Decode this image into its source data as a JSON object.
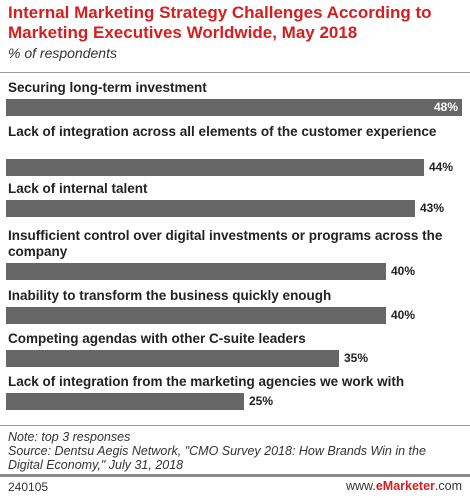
{
  "chart_data": {
    "type": "bar",
    "title": "Internal Marketing Strategy Challenges According to Marketing Executives Worldwide, May 2018",
    "subtitle": "% of respondents",
    "categories": [
      "Securing long-term investment",
      "Lack of integration across all elements of the customer experience",
      "Lack of internal talent",
      "Insufficient control over digital investments or programs across the company",
      "Inability to transform the business quickly enough",
      "Competing agendas with other C-suite leaders",
      "Lack of integration from the marketing agencies we work with"
    ],
    "values": [
      48,
      44,
      43,
      40,
      40,
      35,
      25
    ],
    "value_labels": [
      "48%",
      "44%",
      "43%",
      "40%",
      "40%",
      "35%",
      "25%"
    ],
    "unit": "%"
  },
  "notes": {
    "note": "Note: top 3 responses",
    "source": "Source: Dentsu Aegis Network, \"CMO Survey 2018: How Brands Win in the Digital Economy,\" July 31, 2018"
  },
  "footer": {
    "id": "240105",
    "brand_prefix": "www.",
    "brand_name": "eMarketer",
    "brand_suffix": ".com"
  },
  "colors": {
    "title": "#d71e1e",
    "bar": "#666666"
  }
}
